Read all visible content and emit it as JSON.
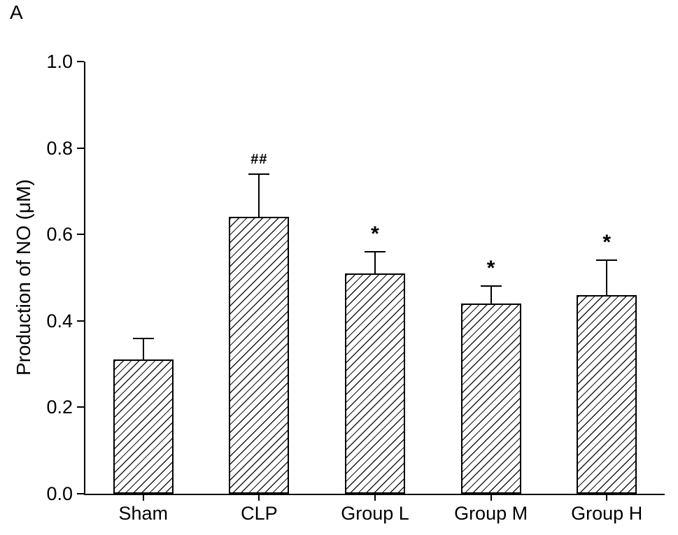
{
  "panel_label": "A",
  "chart_data": {
    "type": "bar",
    "title": "",
    "xlabel": "",
    "ylabel": "Production of NO (μM)",
    "categories": [
      "Sham",
      "CLP",
      "Group L",
      "Group M",
      "Group H"
    ],
    "values": [
      0.31,
      0.64,
      0.51,
      0.44,
      0.46
    ],
    "errors": [
      0.05,
      0.1,
      0.05,
      0.04,
      0.08
    ],
    "annotations": [
      "",
      "##",
      "*",
      "*",
      "*"
    ],
    "ylim": [
      0.0,
      1.0
    ],
    "yticks": [
      0.0,
      0.2,
      0.4,
      0.6,
      0.8,
      1.0
    ],
    "ytick_labels": [
      "0.0",
      "0.2",
      "0.4",
      "0.6",
      "0.8",
      "1.0"
    ],
    "bar_style": "diagonal-hatch",
    "bar_fill": "#ffffff",
    "bar_edge": "#000000",
    "grid": false,
    "legend": "none"
  }
}
